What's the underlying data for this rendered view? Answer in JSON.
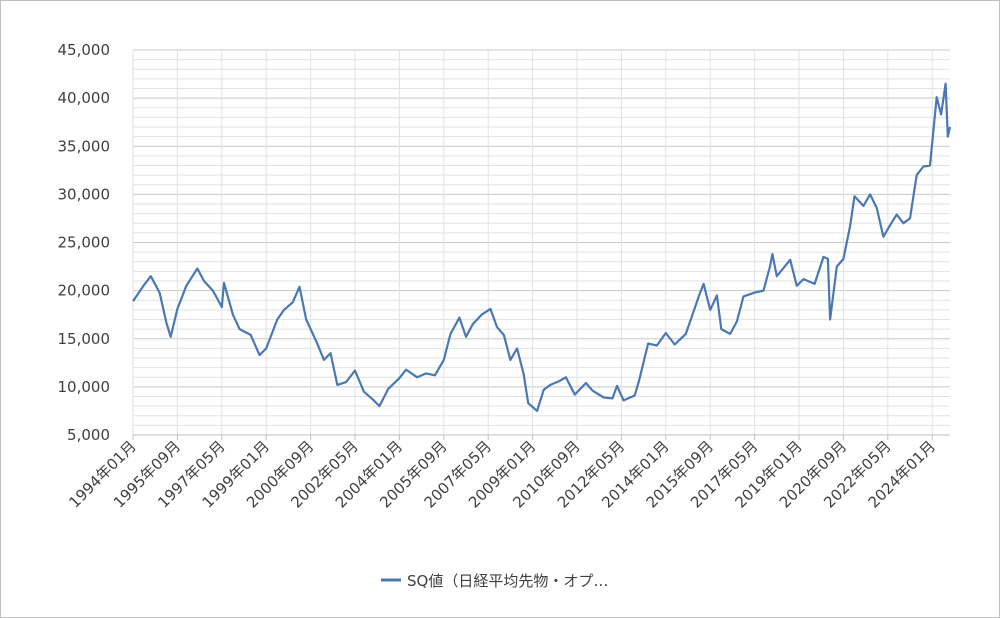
{
  "chart_data": {
    "type": "line",
    "title": "",
    "xlabel": "",
    "ylabel": "",
    "ylim": [
      5000,
      45000
    ],
    "grid": true,
    "legend_position": "bottom",
    "y_ticks": [
      "5,000",
      "10,000",
      "15,000",
      "20,000",
      "25,000",
      "30,000",
      "35,000",
      "40,000",
      "45,000"
    ],
    "x_ticks": [
      "1994年01月",
      "1995年09月",
      "1997年05月",
      "1999年01月",
      "2000年09月",
      "2002年05月",
      "2004年01月",
      "2005年09月",
      "2007年05月",
      "2009年01月",
      "2010年09月",
      "2012年05月",
      "2014年01月",
      "2015年09月",
      "2017年05月",
      "2019年01月",
      "2020年09月",
      "2022年05月",
      "2024年01月"
    ],
    "series": [
      {
        "name": "SQ値（日経平均先物・オプ…",
        "color": "#4a78b4",
        "points": [
          [
            "1994-01",
            18900
          ],
          [
            "1994-06",
            20600
          ],
          [
            "1994-09",
            21500
          ],
          [
            "1995-01",
            19800
          ],
          [
            "1995-04",
            16700
          ],
          [
            "1995-06",
            15200
          ],
          [
            "1995-09",
            18100
          ],
          [
            "1996-01",
            20500
          ],
          [
            "1996-06",
            22300
          ],
          [
            "1996-09",
            21000
          ],
          [
            "1997-01",
            20000
          ],
          [
            "1997-05",
            18300
          ],
          [
            "1997-06",
            20800
          ],
          [
            "1997-10",
            17500
          ],
          [
            "1998-01",
            16000
          ],
          [
            "1998-06",
            15400
          ],
          [
            "1998-10",
            13300
          ],
          [
            "1999-01",
            14000
          ],
          [
            "1999-06",
            17000
          ],
          [
            "1999-09",
            18000
          ],
          [
            "2000-01",
            18800
          ],
          [
            "2000-04",
            20400
          ],
          [
            "2000-07",
            17000
          ],
          [
            "2000-12",
            14500
          ],
          [
            "2001-03",
            12800
          ],
          [
            "2001-06",
            13500
          ],
          [
            "2001-09",
            10200
          ],
          [
            "2002-01",
            10500
          ],
          [
            "2002-05",
            11700
          ],
          [
            "2002-09",
            9500
          ],
          [
            "2003-01",
            8700
          ],
          [
            "2003-04",
            8000
          ],
          [
            "2003-08",
            9800
          ],
          [
            "2004-01",
            10900
          ],
          [
            "2004-04",
            11800
          ],
          [
            "2004-09",
            11000
          ],
          [
            "2005-01",
            11400
          ],
          [
            "2005-05",
            11200
          ],
          [
            "2005-09",
            12800
          ],
          [
            "2005-12",
            15500
          ],
          [
            "2006-04",
            17200
          ],
          [
            "2006-07",
            15200
          ],
          [
            "2006-10",
            16500
          ],
          [
            "2007-02",
            17500
          ],
          [
            "2007-06",
            18100
          ],
          [
            "2007-09",
            16200
          ],
          [
            "2007-12",
            15400
          ],
          [
            "2008-03",
            12800
          ],
          [
            "2008-06",
            14000
          ],
          [
            "2008-09",
            11300
          ],
          [
            "2008-11",
            8300
          ],
          [
            "2009-03",
            7500
          ],
          [
            "2009-06",
            9700
          ],
          [
            "2009-09",
            10200
          ],
          [
            "2010-01",
            10600
          ],
          [
            "2010-04",
            11000
          ],
          [
            "2010-08",
            9200
          ],
          [
            "2011-01",
            10400
          ],
          [
            "2011-04",
            9600
          ],
          [
            "2011-09",
            8900
          ],
          [
            "2012-01",
            8800
          ],
          [
            "2012-03",
            10100
          ],
          [
            "2012-06",
            8600
          ],
          [
            "2012-11",
            9100
          ],
          [
            "2013-01",
            10700
          ],
          [
            "2013-05",
            14500
          ],
          [
            "2013-09",
            14300
          ],
          [
            "2014-01",
            15600
          ],
          [
            "2014-05",
            14400
          ],
          [
            "2014-10",
            15500
          ],
          [
            "2015-01",
            17500
          ],
          [
            "2015-04",
            19500
          ],
          [
            "2015-06",
            20700
          ],
          [
            "2015-09",
            18000
          ],
          [
            "2015-12",
            19500
          ],
          [
            "2016-02",
            16000
          ],
          [
            "2016-06",
            15500
          ],
          [
            "2016-09",
            16800
          ],
          [
            "2016-12",
            19400
          ],
          [
            "2017-05",
            19800
          ],
          [
            "2017-09",
            20000
          ],
          [
            "2017-12",
            22600
          ],
          [
            "2018-01",
            23800
          ],
          [
            "2018-03",
            21500
          ],
          [
            "2018-09",
            23200
          ],
          [
            "2018-12",
            20500
          ],
          [
            "2019-03",
            21200
          ],
          [
            "2019-08",
            20700
          ],
          [
            "2019-12",
            23500
          ],
          [
            "2020-02",
            23300
          ],
          [
            "2020-03",
            17000
          ],
          [
            "2020-06",
            22500
          ],
          [
            "2020-09",
            23300
          ],
          [
            "2020-12",
            26700
          ],
          [
            "2021-02",
            29800
          ],
          [
            "2021-06",
            28800
          ],
          [
            "2021-09",
            30000
          ],
          [
            "2021-12",
            28600
          ],
          [
            "2022-03",
            25600
          ],
          [
            "2022-06",
            26800
          ],
          [
            "2022-09",
            27900
          ],
          [
            "2022-12",
            27000
          ],
          [
            "2023-03",
            27500
          ],
          [
            "2023-06",
            32000
          ],
          [
            "2023-09",
            32900
          ],
          [
            "2023-12",
            33000
          ],
          [
            "2024-02",
            37800
          ],
          [
            "2024-03",
            40100
          ],
          [
            "2024-05",
            38300
          ],
          [
            "2024-07",
            41500
          ],
          [
            "2024-08",
            36000
          ],
          [
            "2024-09",
            37000
          ]
        ]
      }
    ]
  }
}
